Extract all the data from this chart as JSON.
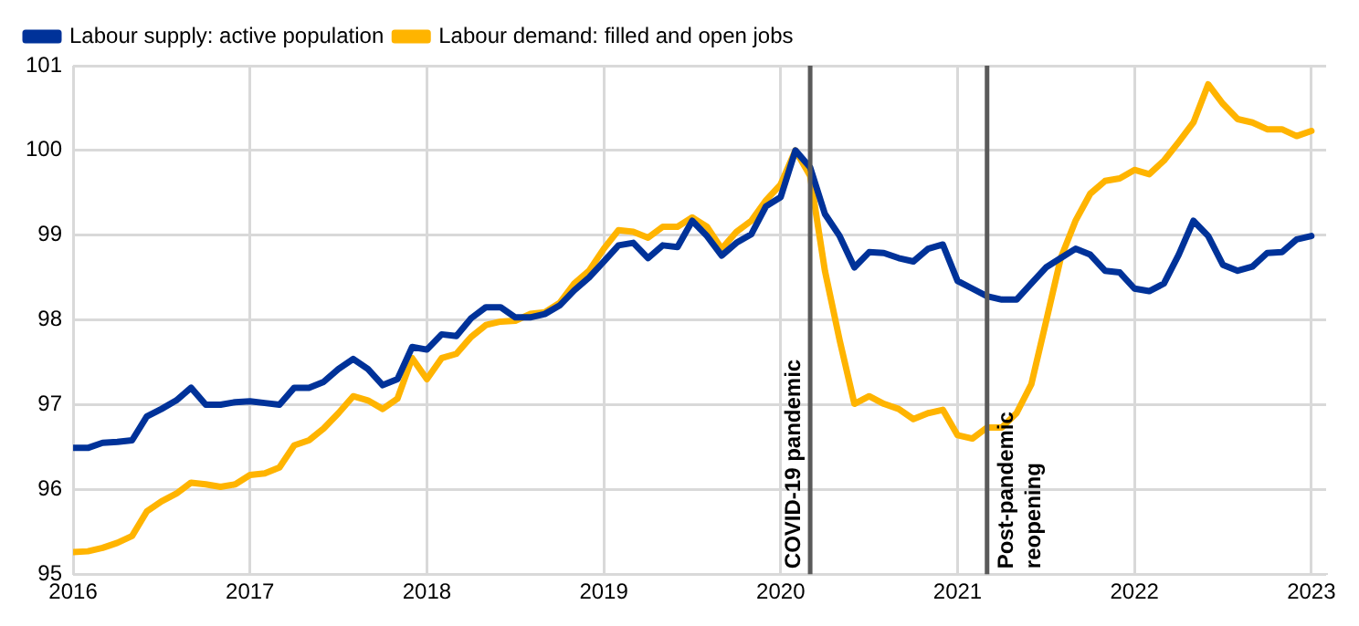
{
  "chart_data": {
    "type": "line",
    "x": [
      "2016-01",
      "2016-02",
      "2016-03",
      "2016-04",
      "2016-05",
      "2016-06",
      "2016-07",
      "2016-08",
      "2016-09",
      "2016-10",
      "2016-11",
      "2016-12",
      "2017-01",
      "2017-02",
      "2017-03",
      "2017-04",
      "2017-05",
      "2017-06",
      "2017-07",
      "2017-08",
      "2017-09",
      "2017-10",
      "2017-11",
      "2017-12",
      "2018-01",
      "2018-02",
      "2018-03",
      "2018-04",
      "2018-05",
      "2018-06",
      "2018-07",
      "2018-08",
      "2018-09",
      "2018-10",
      "2018-11",
      "2018-12",
      "2019-01",
      "2019-02",
      "2019-03",
      "2019-04",
      "2019-05",
      "2019-06",
      "2019-07",
      "2019-08",
      "2019-09",
      "2019-10",
      "2019-11",
      "2019-12",
      "2020-01",
      "2020-02",
      "2020-03",
      "2020-04",
      "2020-05",
      "2020-06",
      "2020-07",
      "2020-08",
      "2020-09",
      "2020-10",
      "2020-11",
      "2020-12",
      "2021-01",
      "2021-02",
      "2021-03",
      "2021-04",
      "2021-05",
      "2021-06",
      "2021-07",
      "2021-08",
      "2021-09",
      "2021-10",
      "2021-11",
      "2021-12",
      "2022-01",
      "2022-02",
      "2022-03",
      "2022-04",
      "2022-05",
      "2022-06",
      "2022-07",
      "2022-08",
      "2022-09",
      "2022-10",
      "2022-11",
      "2022-12",
      "2023-01"
    ],
    "series": [
      {
        "name": "Labour supply: active population",
        "color": "#003299",
        "values": [
          96.49,
          96.49,
          96.55,
          96.56,
          96.58,
          96.86,
          96.95,
          97.05,
          97.2,
          97.0,
          97.0,
          97.03,
          97.04,
          97.02,
          97.0,
          97.2,
          97.2,
          97.27,
          97.42,
          97.54,
          97.42,
          97.23,
          97.3,
          97.68,
          97.65,
          97.83,
          97.81,
          98.02,
          98.15,
          98.15,
          98.03,
          98.03,
          98.07,
          98.17,
          98.35,
          98.5,
          98.69,
          98.88,
          98.91,
          98.73,
          98.88,
          98.86,
          99.17,
          98.99,
          98.76,
          98.91,
          99.01,
          99.34,
          99.45,
          100.0,
          99.8,
          99.25,
          98.99,
          98.62,
          98.8,
          98.79,
          98.73,
          98.69,
          98.84,
          98.89,
          98.46,
          98.37,
          98.28,
          98.24,
          98.24,
          98.43,
          98.62,
          98.73,
          98.84,
          98.77,
          98.58,
          98.56,
          98.37,
          98.34,
          98.43,
          98.77,
          99.17,
          98.99,
          98.65,
          98.58,
          98.63,
          98.79,
          98.8,
          98.95,
          98.99
        ]
      },
      {
        "name": "Labour demand: filled and open jobs",
        "color": "#ffb400",
        "values": [
          95.26,
          95.27,
          95.31,
          95.37,
          95.45,
          95.74,
          95.86,
          95.95,
          96.08,
          96.06,
          96.03,
          96.06,
          96.17,
          96.19,
          96.26,
          96.52,
          96.58,
          96.72,
          96.9,
          97.1,
          97.05,
          96.95,
          97.07,
          97.55,
          97.3,
          97.55,
          97.6,
          97.8,
          97.94,
          97.98,
          97.99,
          98.07,
          98.09,
          98.2,
          98.43,
          98.58,
          98.84,
          99.06,
          99.04,
          98.97,
          99.1,
          99.1,
          99.21,
          99.1,
          98.84,
          99.04,
          99.17,
          99.41,
          99.6,
          100.0,
          99.7,
          98.58,
          97.76,
          97.01,
          97.1,
          97.01,
          96.95,
          96.83,
          96.9,
          96.94,
          96.64,
          96.6,
          96.73,
          96.73,
          96.9,
          97.24,
          97.98,
          98.73,
          99.17,
          99.49,
          99.64,
          99.67,
          99.77,
          99.72,
          99.88,
          100.1,
          100.33,
          100.78,
          100.55,
          100.37,
          100.33,
          100.25,
          100.25,
          100.17,
          100.23
        ]
      }
    ],
    "xlim": [
      "2016-01",
      "2023-02"
    ],
    "xticks": [
      "2016",
      "2017",
      "2018",
      "2019",
      "2020",
      "2021",
      "2022",
      "2023"
    ],
    "ylim": [
      95,
      101
    ],
    "yticks": [
      95,
      96,
      97,
      98,
      99,
      100,
      101
    ],
    "grid": true,
    "legend": "top left",
    "marker": "none",
    "line_style": "solid",
    "ref_lines": [
      {
        "axis": "x",
        "value": "2020-03",
        "label": "COVID-19 pandemic",
        "color": "#5a5a5a",
        "line_style": "solid"
      },
      {
        "axis": "x",
        "value": "2021-03",
        "label": "Post-pandemic\nreopening",
        "color": "#5a5a5a",
        "line_style": "solid"
      }
    ]
  }
}
